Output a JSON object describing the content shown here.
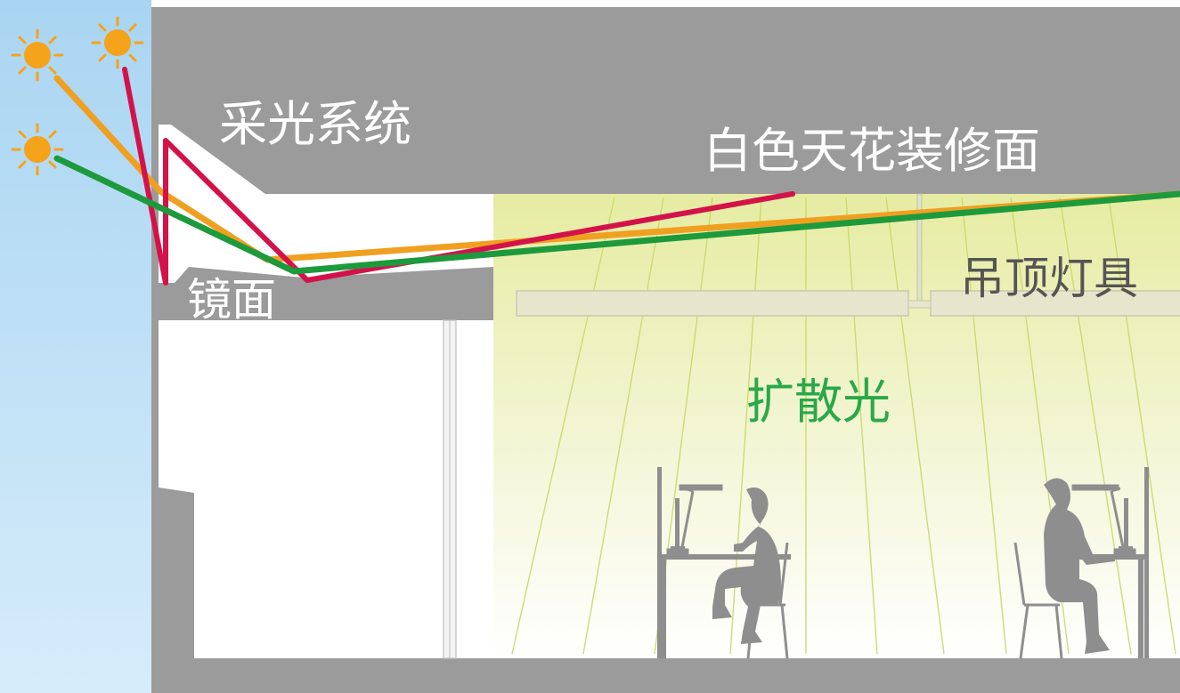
{
  "labels": {
    "daylighting_system": "采光系统",
    "white_ceiling": "白色天花装修面",
    "mirror": "镜面",
    "ceiling_luminaire": "吊顶灯具",
    "diffuse_light": "扩散光"
  },
  "colors": {
    "sky": "#bfe0f5",
    "structure": "#9b9b9b",
    "room_glow": "#e8edaa",
    "diffuse_rays": "#c9d86a",
    "sun": "#f5a31a",
    "ray_red": "#d4124a",
    "ray_orange": "#f0a020",
    "ray_green": "#1d9a3c",
    "label_white": "#ffffff",
    "label_gray": "#555555",
    "label_green": "#2aa84a",
    "silhouette": "#8e8e8e"
  },
  "icons": [
    "sun-icon",
    "person-silhouette",
    "desk-lamp-icon",
    "monitor-icon",
    "chair-icon"
  ]
}
